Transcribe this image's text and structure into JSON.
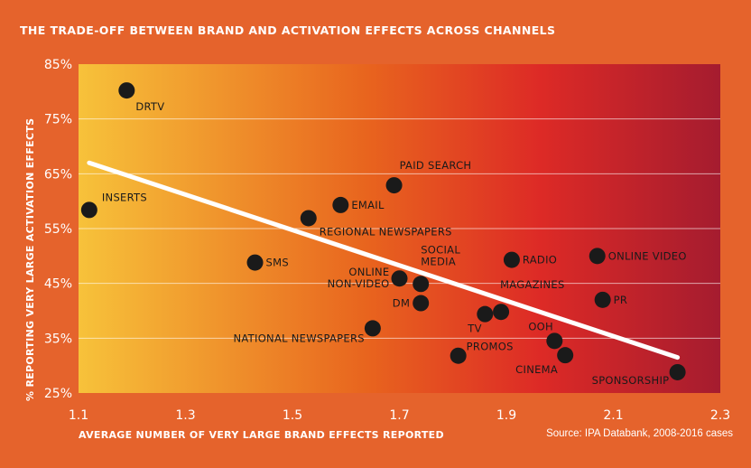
{
  "title": "THE TRADE-OFF BETWEEN BRAND AND ACTIVATION EFFECTS ACROSS CHANNELS",
  "source": "Source: IPA Databank, 2008-2016 cases",
  "colors": {
    "background": "#e5632c",
    "gradient_left": "#f7c23a",
    "gradient_mid": "#e8641e",
    "gradient_right": "#a51c2f",
    "point": "#1a1a1a",
    "trend": "#ffffff"
  },
  "chart_data": {
    "type": "scatter",
    "xlabel": "AVERAGE NUMBER OF VERY LARGE BRAND EFFECTS REPORTED",
    "ylabel": "% REPORTING VERY LARGE ACTIVATION EFFECTS",
    "xlim": [
      1.1,
      2.3
    ],
    "ylim": [
      25,
      85
    ],
    "x_ticks": [
      "1.1",
      "1.3",
      "1.5",
      "1.7",
      "1.9",
      "2.1",
      "2.3"
    ],
    "y_ticks": [
      "85%",
      "75%",
      "65%",
      "55%",
      "45%",
      "35%",
      "25%"
    ],
    "grid": "horizontal",
    "points": [
      {
        "label": "DRTV",
        "x": 1.19,
        "y": 80.2
      },
      {
        "label": "INSERTS",
        "x": 1.12,
        "y": 58.4
      },
      {
        "label": "PAID SEARCH",
        "x": 1.69,
        "y": 62.9
      },
      {
        "label": "EMAIL",
        "x": 1.59,
        "y": 59.3
      },
      {
        "label": "REGIONAL NEWSPAPERS",
        "x": 1.53,
        "y": 56.9
      },
      {
        "label": "SMS",
        "x": 1.43,
        "y": 48.8
      },
      {
        "label": "ONLINE\nNON-VIDEO",
        "x": 1.7,
        "y": 45.9
      },
      {
        "label": "SOCIAL\nMEDIA",
        "x": 1.74,
        "y": 44.9
      },
      {
        "label": "DM",
        "x": 1.74,
        "y": 41.4
      },
      {
        "label": "NATIONAL NEWSPAPERS",
        "x": 1.65,
        "y": 36.8
      },
      {
        "label": "TV",
        "x": 1.86,
        "y": 39.4
      },
      {
        "label": "MAGAZINES",
        "x": 1.89,
        "y": 39.8
      },
      {
        "label": "RADIO",
        "x": 1.91,
        "y": 49.3
      },
      {
        "label": "ONLINE VIDEO",
        "x": 2.07,
        "y": 50.0
      },
      {
        "label": "PR",
        "x": 2.08,
        "y": 42.0
      },
      {
        "label": "PROMOS",
        "x": 1.81,
        "y": 31.8
      },
      {
        "label": "OOH",
        "x": 1.99,
        "y": 34.5
      },
      {
        "label": "CINEMA",
        "x": 2.01,
        "y": 31.9
      },
      {
        "label": "SPONSORSHIP",
        "x": 2.22,
        "y": 28.8
      }
    ],
    "trendline": {
      "x": [
        1.12,
        2.22
      ],
      "y": [
        67.0,
        31.5
      ]
    }
  }
}
